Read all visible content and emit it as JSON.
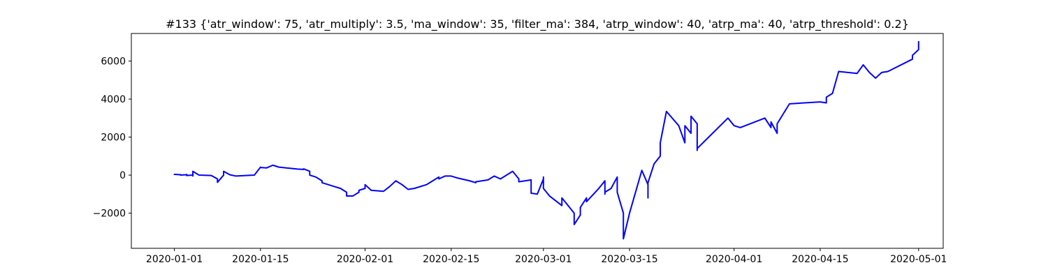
{
  "chart_data": {
    "type": "line",
    "title": "#133 {'atr_window': 75, 'atr_multiply': 3.5, 'ma_window': 35, 'filter_ma': 384, 'atrp_window': 40, 'atrp_ma': 40, 'atrp_threshold': 0.2}",
    "xlabel": "",
    "ylabel": "",
    "x_axis_type": "date",
    "xlim": [
      "2019-12-25",
      "2020-05-05"
    ],
    "ylim": [
      -3850,
      7450
    ],
    "x_ticks": [
      "2020-01-01",
      "2020-01-15",
      "2020-02-01",
      "2020-02-15",
      "2020-03-01",
      "2020-03-15",
      "2020-04-01",
      "2020-04-15",
      "2020-05-01"
    ],
    "y_ticks": [
      -2000,
      0,
      2000,
      4000,
      6000
    ],
    "grid": false,
    "line_color": "#0000ff",
    "series": [
      {
        "points": [
          [
            "2020-01-01",
            0
          ],
          [
            "2020-01-01",
            40
          ],
          [
            "2020-01-02",
            20
          ],
          [
            "2020-01-02",
            0
          ],
          [
            "2020-01-03",
            20
          ],
          [
            "2020-01-03",
            0
          ],
          [
            "2020-01-03",
            40
          ],
          [
            "2020-01-03",
            -20
          ],
          [
            "2020-01-04",
            0
          ],
          [
            "2020-01-04",
            -50
          ],
          [
            "2020-01-04",
            200
          ],
          [
            "2020-01-05",
            0
          ],
          [
            "2020-01-07",
            -20
          ],
          [
            "2020-01-08",
            -200
          ],
          [
            "2020-01-08",
            -380
          ],
          [
            "2020-01-09",
            0
          ],
          [
            "2020-01-09",
            200
          ],
          [
            "2020-01-10",
            20
          ],
          [
            "2020-01-11",
            -50
          ],
          [
            "2020-01-14",
            0
          ],
          [
            "2020-01-15",
            420
          ],
          [
            "2020-01-15",
            400
          ],
          [
            "2020-01-16",
            380
          ],
          [
            "2020-01-17",
            520
          ],
          [
            "2020-01-18",
            420
          ],
          [
            "2020-01-21",
            320
          ],
          [
            "2020-01-22",
            300
          ],
          [
            "2020-01-22",
            330
          ],
          [
            "2020-01-23",
            200
          ],
          [
            "2020-01-23",
            0
          ],
          [
            "2020-01-24",
            -100
          ],
          [
            "2020-01-25",
            -300
          ],
          [
            "2020-01-25",
            -400
          ],
          [
            "2020-01-27",
            -600
          ],
          [
            "2020-01-28",
            -700
          ],
          [
            "2020-01-29",
            -900
          ],
          [
            "2020-01-29",
            -1100
          ],
          [
            "2020-01-30",
            -1100
          ],
          [
            "2020-01-30",
            -1100
          ],
          [
            "2020-01-31",
            -900
          ],
          [
            "2020-01-31",
            -800
          ],
          [
            "2020-02-01",
            -700
          ],
          [
            "2020-02-01",
            -500
          ],
          [
            "2020-02-02",
            -800
          ],
          [
            "2020-02-04",
            -850
          ],
          [
            "2020-02-05",
            -600
          ],
          [
            "2020-02-06",
            -300
          ],
          [
            "2020-02-07",
            -500
          ],
          [
            "2020-02-08",
            -750
          ],
          [
            "2020-02-09",
            -700
          ],
          [
            "2020-02-11",
            -500
          ],
          [
            "2020-02-12",
            -300
          ],
          [
            "2020-02-13",
            -100
          ],
          [
            "2020-02-13",
            -200
          ],
          [
            "2020-02-14",
            -50
          ],
          [
            "2020-02-15",
            -50
          ],
          [
            "2020-02-16",
            -150
          ],
          [
            "2020-02-18",
            -300
          ],
          [
            "2020-02-19",
            -400
          ],
          [
            "2020-02-19",
            -350
          ],
          [
            "2020-02-21",
            -250
          ],
          [
            "2020-02-22",
            -50
          ],
          [
            "2020-02-23",
            -200
          ],
          [
            "2020-02-25",
            200
          ],
          [
            "2020-02-26",
            -200
          ],
          [
            "2020-02-26",
            -350
          ],
          [
            "2020-02-27",
            -300
          ],
          [
            "2020-02-28",
            -250
          ],
          [
            "2020-02-28",
            -950
          ],
          [
            "2020-02-29",
            -1000
          ],
          [
            "2020-03-01",
            -200
          ],
          [
            "2020-03-01",
            -100
          ],
          [
            "2020-03-01",
            -700
          ],
          [
            "2020-03-02",
            -1100
          ],
          [
            "2020-03-04",
            -1600
          ],
          [
            "2020-03-04",
            -1200
          ],
          [
            "2020-03-05",
            -1600
          ],
          [
            "2020-03-06",
            -2000
          ],
          [
            "2020-03-06",
            -2600
          ],
          [
            "2020-03-07",
            -2100
          ],
          [
            "2020-03-07",
            -1700
          ],
          [
            "2020-03-08",
            -1200
          ],
          [
            "2020-03-08",
            -1400
          ],
          [
            "2020-03-10",
            -700
          ],
          [
            "2020-03-11",
            -300
          ],
          [
            "2020-03-11",
            -1000
          ],
          [
            "2020-03-11",
            -900
          ],
          [
            "2020-03-12",
            -700
          ],
          [
            "2020-03-13",
            -100
          ],
          [
            "2020-03-13",
            -900
          ],
          [
            "2020-03-14",
            -2000
          ],
          [
            "2020-03-14",
            -2600
          ],
          [
            "2020-03-14",
            -3350
          ],
          [
            "2020-03-15",
            -2000
          ],
          [
            "2020-03-17",
            250
          ],
          [
            "2020-03-18",
            -500
          ],
          [
            "2020-03-18",
            -1200
          ],
          [
            "2020-03-18",
            -400
          ],
          [
            "2020-03-19",
            600
          ],
          [
            "2020-03-20",
            1000
          ],
          [
            "2020-03-20",
            1700
          ],
          [
            "2020-03-21",
            3350
          ],
          [
            "2020-03-23",
            2600
          ],
          [
            "2020-03-24",
            1700
          ],
          [
            "2020-03-24",
            2600
          ],
          [
            "2020-03-25",
            2200
          ],
          [
            "2020-03-25",
            3100
          ],
          [
            "2020-03-26",
            2700
          ],
          [
            "2020-03-26",
            1300
          ],
          [
            "2020-03-26",
            1400
          ],
          [
            "2020-03-31",
            3000
          ],
          [
            "2020-04-01",
            2600
          ],
          [
            "2020-04-02",
            2500
          ],
          [
            "2020-04-06",
            3000
          ],
          [
            "2020-04-07",
            2500
          ],
          [
            "2020-04-07",
            2800
          ],
          [
            "2020-04-08",
            2200
          ],
          [
            "2020-04-08",
            2700
          ],
          [
            "2020-04-10",
            3750
          ],
          [
            "2020-04-15",
            3850
          ],
          [
            "2020-04-16",
            3800
          ],
          [
            "2020-04-16",
            4100
          ],
          [
            "2020-04-17",
            4300
          ],
          [
            "2020-04-18",
            5450
          ],
          [
            "2020-04-21",
            5350
          ],
          [
            "2020-04-22",
            5800
          ],
          [
            "2020-04-23",
            5400
          ],
          [
            "2020-04-24",
            5100
          ],
          [
            "2020-04-25",
            5400
          ],
          [
            "2020-04-26",
            5450
          ],
          [
            "2020-04-30",
            6100
          ],
          [
            "2020-04-30",
            6300
          ],
          [
            "2020-05-01",
            6600
          ],
          [
            "2020-05-01",
            7050
          ]
        ]
      }
    ]
  }
}
